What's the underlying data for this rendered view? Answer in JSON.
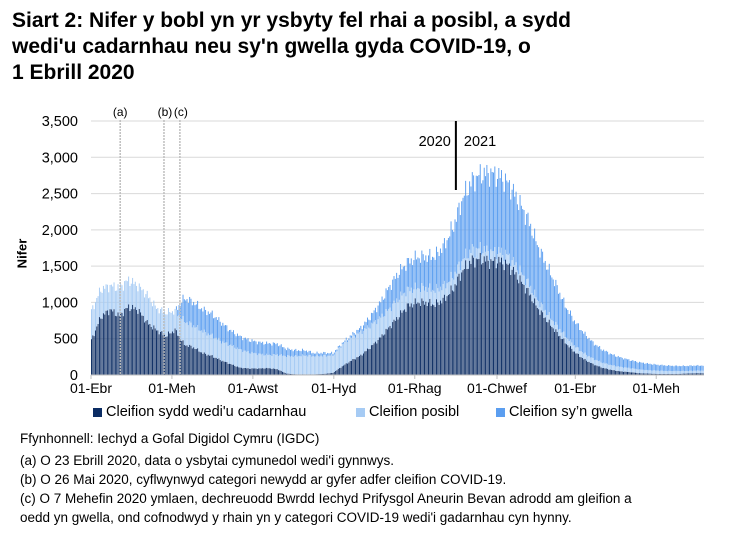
{
  "title": {
    "line1": "Siart 2: Nifer y bobl yn yr ysbyty fel rhai a posibl, a sydd",
    "line2": "wedi'u cadarnhau neu sy'n gwella gyda COVID-19, o",
    "line3": "1 Ebrill 2020"
  },
  "colors": {
    "confirmed": "#0b2c63",
    "suspected": "#a6cbf4",
    "recovering": "#5b9ef0",
    "grid": "#d9d9d9",
    "annotation_line": "#bfbfbf",
    "year_divider": "#000000"
  },
  "annotations": {
    "markers": [
      {
        "label": "(a)",
        "date_index": 22
      },
      {
        "label": "(b)",
        "date_index": 55
      },
      {
        "label": "(c)",
        "date_index": 67
      }
    ],
    "year_left": "2020",
    "year_right": "2021"
  },
  "legend": {
    "confirmed": "Cleifion sydd wedi'u cadarnhau",
    "suspected": "Cleifion posibl",
    "recovering": "Cleifion sy’n gwella"
  },
  "notes": {
    "source": "Ffynhonnell: Iechyd a Gofal Digidol Cymru (IGDC)",
    "a": "(a) O 23 Ebrill 2020, data o ysbytai cymunedol wedi'i gynnwys.",
    "b": "(b) O 26 Mai 2020, cyflwynwyd categori newydd ar gyfer adfer cleifion COVID-19.",
    "c1": "(c) O 7 Mehefin 2020 ymlaen, dechreuodd Bwrdd Iechyd Prifysgol Aneurin Bevan adrodd am gleifion a",
    "c2": "oedd yn gwella, ond cofnodwyd y rhain yn y categori COVID-19 wedi'i gadarnhau cyn hynny."
  },
  "chart_data": {
    "type": "bar",
    "stacked": true,
    "title": "Siart 2: Nifer y bobl yn yr ysbyty fel rhai a posibl, a sydd wedi'u cadarnhau neu sy'n gwella gyda COVID-19, o 1 Ebrill 2020",
    "xlabel": "",
    "ylabel": "Nifer",
    "ylim": [
      0,
      3500
    ],
    "yticks": [
      0,
      500,
      1000,
      1500,
      2000,
      2500,
      3000,
      3500
    ],
    "ytick_labels": [
      "0",
      "500",
      "1,000",
      "1,500",
      "2,000",
      "2,500",
      "3,000",
      "3,500"
    ],
    "grid": true,
    "legend_position": "bottom",
    "x_start": "2020-04-01",
    "x_step_days": 7,
    "x_total_days": 462,
    "xtick_labels": [
      {
        "label": "01-Ebr",
        "day": 0
      },
      {
        "label": "01-Meh",
        "day": 61
      },
      {
        "label": "01-Awst",
        "day": 122
      },
      {
        "label": "01-Hyd",
        "day": 183
      },
      {
        "label": "01-Rhag",
        "day": 244
      },
      {
        "label": "01-Chwef",
        "day": 306
      },
      {
        "label": "01-Ebr",
        "day": 365
      },
      {
        "label": "01-Meh",
        "day": 426
      }
    ],
    "year_divider_day": 275,
    "series": [
      {
        "name": "Cleifion sydd wedi'u cadarnhau",
        "key": "confirmed",
        "values": [
          480,
          800,
          900,
          820,
          940,
          900,
          720,
          620,
          540,
          620,
          420,
          380,
          300,
          260,
          200,
          150,
          100,
          90,
          90,
          95,
          80,
          20,
          10,
          10,
          10,
          15,
          30,
          120,
          200,
          270,
          380,
          500,
          650,
          800,
          950,
          1000,
          1000,
          970,
          1050,
          1200,
          1450,
          1580,
          1600,
          1560,
          1570,
          1500,
          1330,
          1150,
          930,
          760,
          600,
          450,
          320,
          220,
          150,
          100,
          70,
          50,
          40,
          25,
          20,
          15,
          15,
          15,
          20,
          25
        ]
      },
      {
        "name": "Cleifion posibl",
        "key": "suspected",
        "values": [
          400,
          380,
          330,
          380,
          370,
          330,
          380,
          300,
          320,
          260,
          320,
          300,
          300,
          280,
          260,
          260,
          250,
          220,
          200,
          180,
          200,
          240,
          250,
          260,
          250,
          250,
          240,
          300,
          320,
          320,
          300,
          280,
          250,
          250,
          220,
          200,
          200,
          200,
          180,
          170,
          150,
          150,
          140,
          130,
          130,
          130,
          130,
          120,
          110,
          100,
          95,
          90,
          85,
          80,
          75,
          70,
          65,
          60,
          55,
          50,
          45,
          45,
          40,
          40,
          35,
          35
        ]
      },
      {
        "name": "Cleifion sy’n gwella",
        "key": "recovering",
        "values": [
          0,
          0,
          0,
          0,
          0,
          0,
          0,
          0,
          0,
          0,
          320,
          320,
          300,
          300,
          260,
          200,
          180,
          170,
          160,
          160,
          150,
          100,
          80,
          70,
          40,
          40,
          30,
          20,
          30,
          60,
          120,
          200,
          300,
          350,
          380,
          420,
          430,
          470,
          560,
          690,
          850,
          950,
          1030,
          1090,
          1040,
          990,
          930,
          870,
          760,
          650,
          550,
          420,
          340,
          280,
          220,
          180,
          150,
          130,
          110,
          100,
          90,
          80,
          75,
          70,
          70,
          70
        ]
      }
    ]
  }
}
